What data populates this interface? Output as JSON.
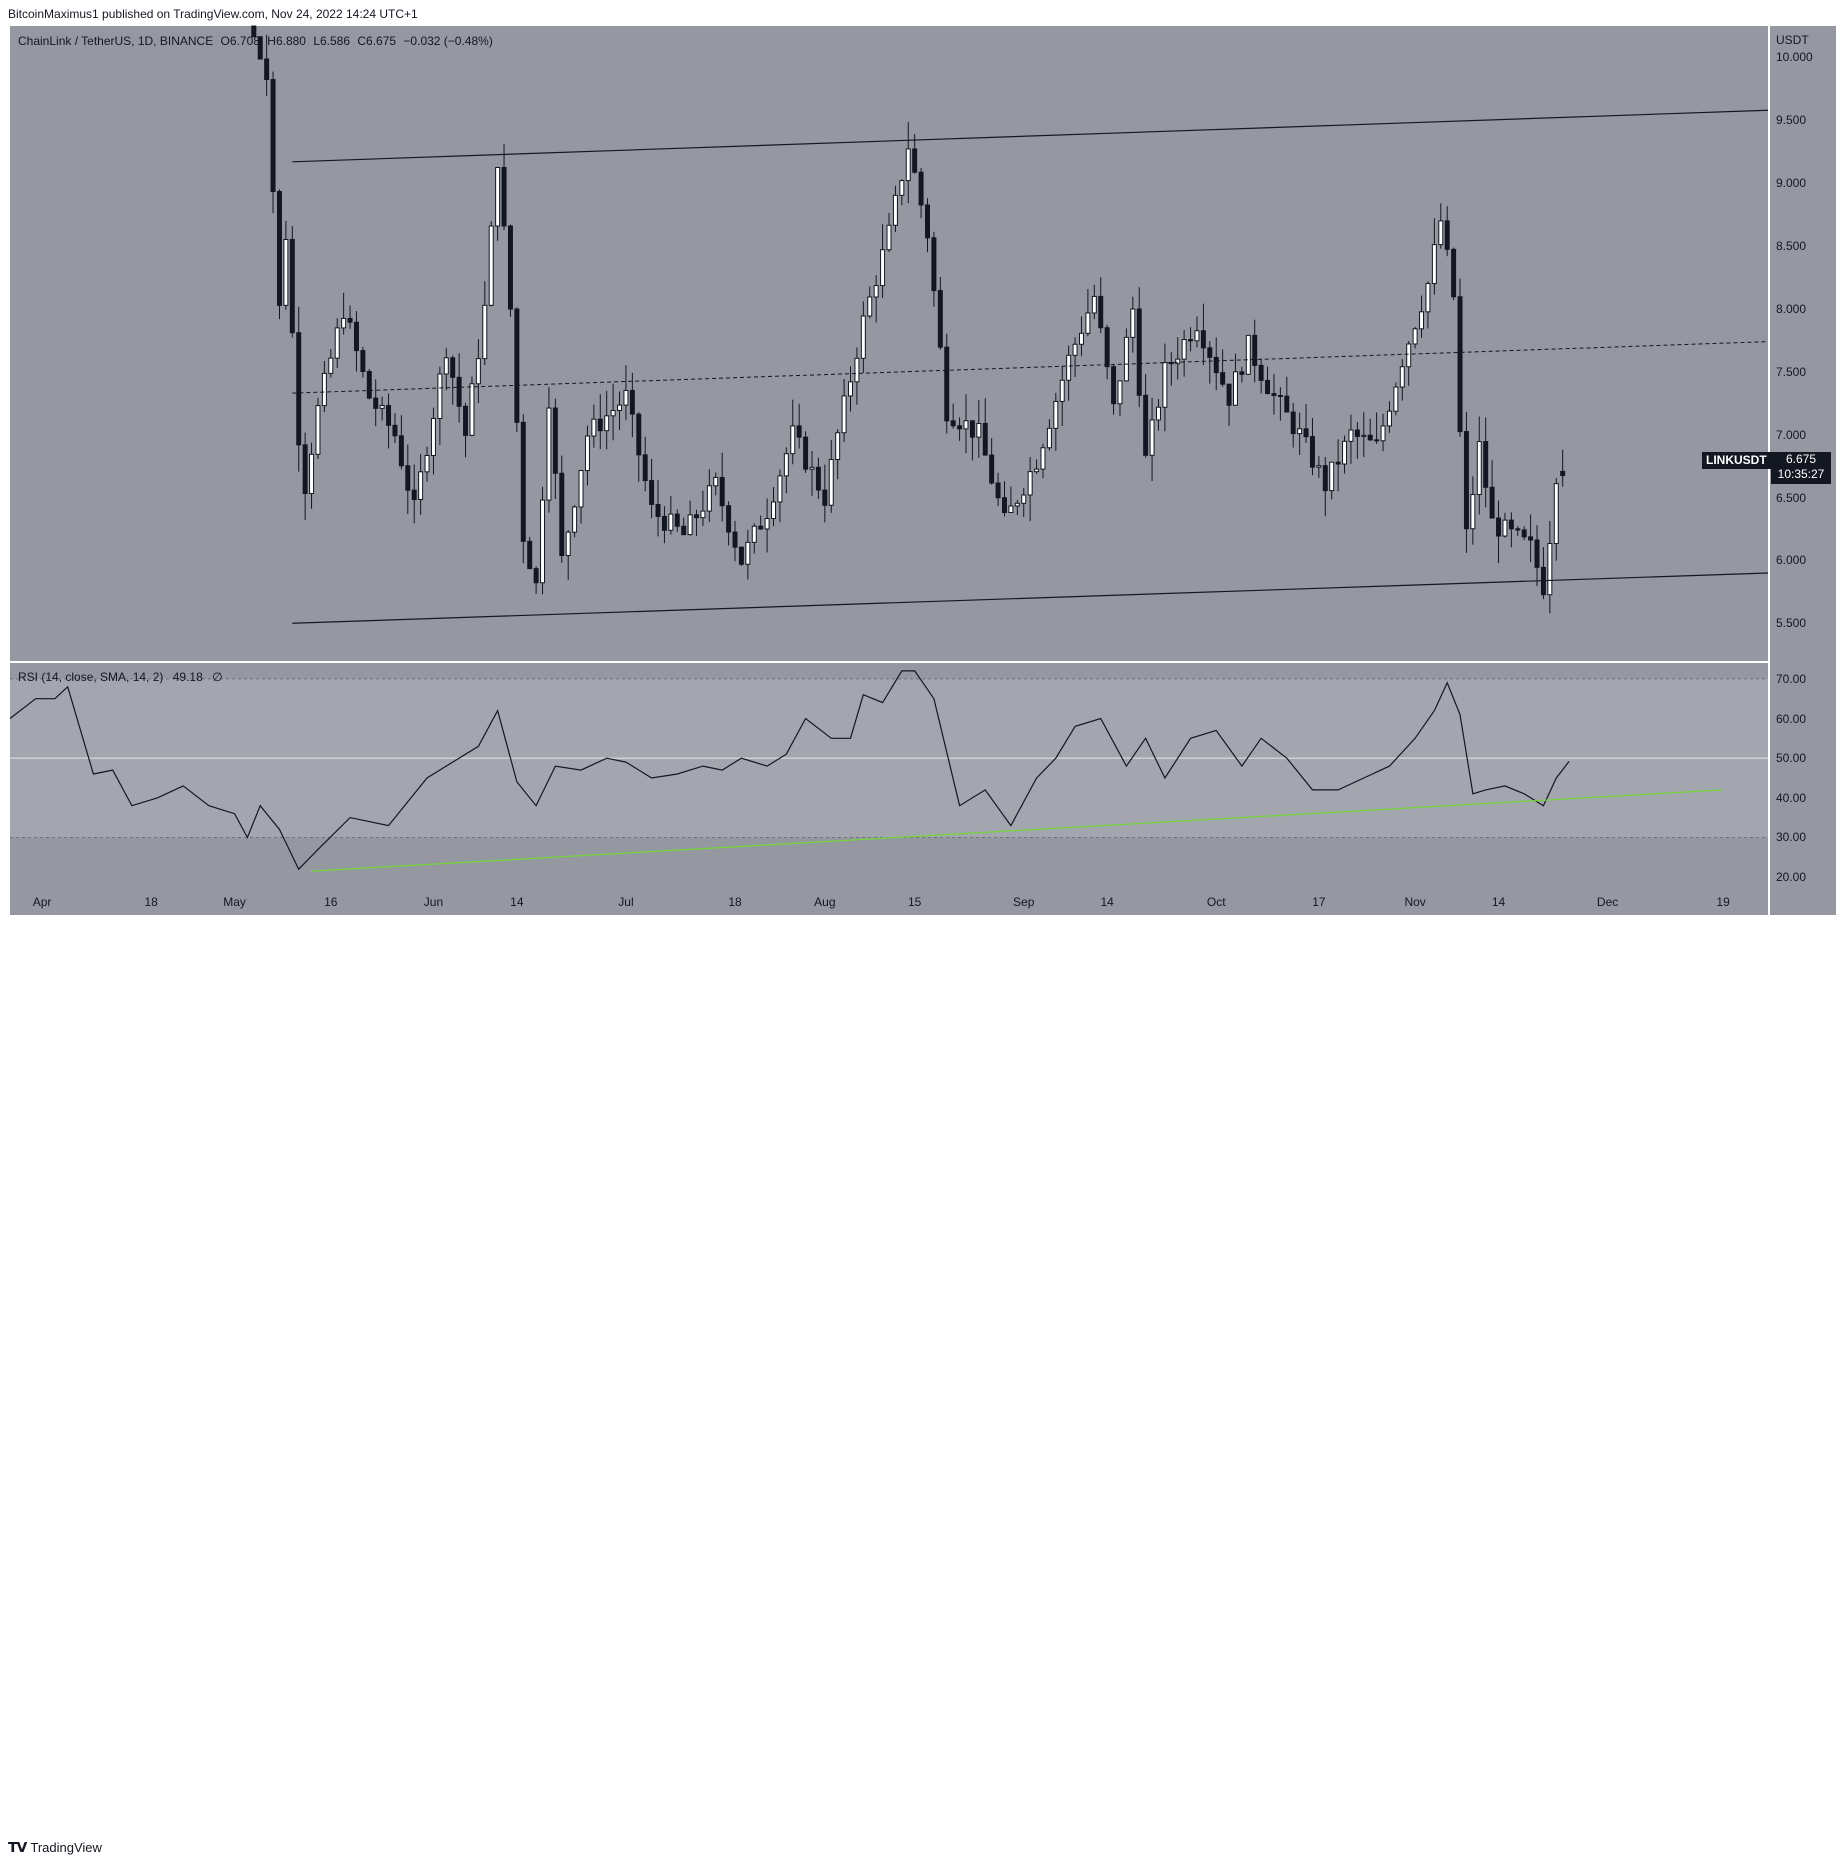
{
  "publisher_line": {
    "author": "BitcoinMaximus1",
    "text": "published on TradingView.com, Nov 24, 2022 14:24 UTC+1"
  },
  "legend": {
    "symbol": "ChainLink / TetherUS, 1D, BINANCE",
    "o_label": "O",
    "o_value": "6.708",
    "h_label": "H",
    "h_value": "6.880",
    "l_label": "L",
    "l_value": "6.586",
    "c_label": "C",
    "c_value": "6.675",
    "change": "−0.032 (−0.48%)"
  },
  "price_axis": {
    "unit": "USDT",
    "ticks": [
      "10.000",
      "9.500",
      "9.000",
      "8.500",
      "8.000",
      "7.500",
      "7.000",
      "6.500",
      "6.000",
      "5.500"
    ]
  },
  "last_price": {
    "symbol": "LINKUSDT",
    "price": "6.675",
    "countdown": "10:35:27"
  },
  "rsi": {
    "legend": "RSI (14, close, SMA, 14, 2)",
    "value": "49.18",
    "extra": "∅",
    "ticks": [
      "70.00",
      "60.00",
      "50.00",
      "40.00",
      "30.00",
      "20.00"
    ]
  },
  "time_axis": {
    "labels": [
      "Apr",
      "18",
      "May",
      "16",
      "Jun",
      "14",
      "Jul",
      "18",
      "Aug",
      "15",
      "Sep",
      "14",
      "Oct",
      "17",
      "Nov",
      "14",
      "Dec",
      "19"
    ]
  },
  "footer": {
    "brand": "TradingView"
  },
  "colors": {
    "pane": "#9598a1",
    "bull": "#ffffff",
    "bear": "#131722",
    "rsi_trend": "#76d43b"
  },
  "chart_data": [
    {
      "type": "candlestick",
      "title": "ChainLink / TetherUS, 1D, BINANCE",
      "ylabel": "USDT",
      "ylim": [
        5.2,
        10.25
      ],
      "x_range": [
        "2022-03-27",
        "2022-12-26"
      ],
      "waypoints_close": [
        [
          "2022-05-03",
          10.3
        ],
        [
          "2022-05-06",
          9.9
        ],
        [
          "2022-05-08",
          8.0
        ],
        [
          "2022-05-09",
          8.6
        ],
        [
          "2022-05-11",
          7.0
        ],
        [
          "2022-05-12",
          6.6
        ],
        [
          "2022-05-14",
          7.2
        ],
        [
          "2022-05-18",
          8.0
        ],
        [
          "2022-05-22",
          7.3
        ],
        [
          "2022-05-26",
          7.0
        ],
        [
          "2022-05-29",
          6.4
        ],
        [
          "2022-06-03",
          7.7
        ],
        [
          "2022-06-06",
          7.0
        ],
        [
          "2022-06-09",
          8.0
        ],
        [
          "2022-06-11",
          9.2
        ],
        [
          "2022-06-13",
          8.0
        ],
        [
          "2022-06-15",
          6.2
        ],
        [
          "2022-06-17",
          5.8
        ],
        [
          "2022-06-19",
          7.3
        ],
        [
          "2022-06-21",
          6.0
        ],
        [
          "2022-06-25",
          7.0
        ],
        [
          "2022-07-01",
          7.3
        ],
        [
          "2022-07-05",
          6.4
        ],
        [
          "2022-07-10",
          6.2
        ],
        [
          "2022-07-15",
          6.6
        ],
        [
          "2022-07-19",
          6.0
        ],
        [
          "2022-07-23",
          6.4
        ],
        [
          "2022-07-27",
          7.0
        ],
        [
          "2022-08-01",
          6.5
        ],
        [
          "2022-08-03",
          7.0
        ],
        [
          "2022-08-07",
          7.9
        ],
        [
          "2022-08-11",
          8.6
        ],
        [
          "2022-08-14",
          9.3
        ],
        [
          "2022-08-17",
          8.6
        ],
        [
          "2022-08-20",
          7.2
        ],
        [
          "2022-08-25",
          7.0
        ],
        [
          "2022-08-29",
          6.3
        ],
        [
          "2022-09-03",
          6.8
        ],
        [
          "2022-09-08",
          7.6
        ],
        [
          "2022-09-12",
          8.1
        ],
        [
          "2022-09-15",
          7.2
        ],
        [
          "2022-09-18",
          8.0
        ],
        [
          "2022-09-20",
          6.8
        ],
        [
          "2022-09-23",
          7.5
        ],
        [
          "2022-09-28",
          7.9
        ],
        [
          "2022-10-03",
          7.3
        ],
        [
          "2022-10-06",
          7.7
        ],
        [
          "2022-10-10",
          7.3
        ],
        [
          "2022-10-14",
          7.0
        ],
        [
          "2022-10-18",
          6.6
        ],
        [
          "2022-10-22",
          7.0
        ],
        [
          "2022-10-26",
          6.9
        ],
        [
          "2022-10-30",
          7.6
        ],
        [
          "2022-11-03",
          8.2
        ],
        [
          "2022-11-05",
          8.7
        ],
        [
          "2022-11-07",
          8.1
        ],
        [
          "2022-11-08",
          7.0
        ],
        [
          "2022-11-09",
          6.2
        ],
        [
          "2022-11-11",
          6.9
        ],
        [
          "2022-11-13",
          6.3
        ],
        [
          "2022-11-16",
          6.2
        ],
        [
          "2022-11-19",
          6.1
        ],
        [
          "2022-11-21",
          5.8
        ],
        [
          "2022-11-22",
          6.2
        ],
        [
          "2022-11-23",
          6.7
        ],
        [
          "2022-11-24",
          6.675
        ]
      ],
      "last_candle": {
        "date": "2022-11-24",
        "open": 6.708,
        "high": 6.88,
        "low": 6.586,
        "close": 6.675
      },
      "channel": {
        "lower": [
          [
            "2022-05-10",
            5.5
          ],
          [
            "2022-12-26",
            5.9
          ]
        ],
        "upper": [
          [
            "2022-05-10",
            9.17
          ],
          [
            "2022-12-26",
            9.58
          ]
        ],
        "mid_dashed": [
          [
            "2022-05-10",
            7.33
          ],
          [
            "2022-12-26",
            7.74
          ]
        ]
      }
    },
    {
      "type": "line",
      "title": "RSI (14, close, SMA, 14, 2)",
      "ylim": [
        17,
        74
      ],
      "bands": {
        "upper": 70,
        "middle": 50,
        "lower": 30
      },
      "series": [
        {
          "values": [
            [
              "2022-03-27",
              60
            ],
            [
              "2022-03-31",
              65
            ],
            [
              "2022-04-03",
              65
            ],
            [
              "2022-04-05",
              68
            ],
            [
              "2022-04-09",
              46
            ],
            [
              "2022-04-12",
              47
            ],
            [
              "2022-04-15",
              38
            ],
            [
              "2022-04-19",
              40
            ],
            [
              "2022-04-23",
              43
            ],
            [
              "2022-04-27",
              38
            ],
            [
              "2022-05-01",
              36
            ],
            [
              "2022-05-03",
              30
            ],
            [
              "2022-05-05",
              38
            ],
            [
              "2022-05-08",
              32
            ],
            [
              "2022-05-11",
              22
            ],
            [
              "2022-05-14",
              27
            ],
            [
              "2022-05-19",
              35
            ],
            [
              "2022-05-25",
              33
            ],
            [
              "2022-05-31",
              45
            ],
            [
              "2022-06-04",
              49
            ],
            [
              "2022-06-08",
              53
            ],
            [
              "2022-06-11",
              62
            ],
            [
              "2022-06-14",
              44
            ],
            [
              "2022-06-17",
              38
            ],
            [
              "2022-06-20",
              48
            ],
            [
              "2022-06-24",
              47
            ],
            [
              "2022-06-28",
              50
            ],
            [
              "2022-07-01",
              49
            ],
            [
              "2022-07-05",
              45
            ],
            [
              "2022-07-09",
              46
            ],
            [
              "2022-07-13",
              48
            ],
            [
              "2022-07-16",
              47
            ],
            [
              "2022-07-19",
              50
            ],
            [
              "2022-07-23",
              48
            ],
            [
              "2022-07-26",
              51
            ],
            [
              "2022-07-29",
              60
            ],
            [
              "2022-08-02",
              55
            ],
            [
              "2022-08-05",
              55
            ],
            [
              "2022-08-07",
              66
            ],
            [
              "2022-08-10",
              64
            ],
            [
              "2022-08-13",
              72
            ],
            [
              "2022-08-15",
              72
            ],
            [
              "2022-08-18",
              65
            ],
            [
              "2022-08-22",
              38
            ],
            [
              "2022-08-26",
              42
            ],
            [
              "2022-08-30",
              33
            ],
            [
              "2022-09-03",
              45
            ],
            [
              "2022-09-06",
              50
            ],
            [
              "2022-09-09",
              58
            ],
            [
              "2022-09-13",
              60
            ],
            [
              "2022-09-17",
              48
            ],
            [
              "2022-09-20",
              55
            ],
            [
              "2022-09-23",
              45
            ],
            [
              "2022-09-27",
              55
            ],
            [
              "2022-10-01",
              57
            ],
            [
              "2022-10-05",
              48
            ],
            [
              "2022-10-08",
              55
            ],
            [
              "2022-10-12",
              50
            ],
            [
              "2022-10-16",
              42
            ],
            [
              "2022-10-20",
              42
            ],
            [
              "2022-10-24",
              45
            ],
            [
              "2022-10-28",
              48
            ],
            [
              "2022-11-01",
              55
            ],
            [
              "2022-11-04",
              62
            ],
            [
              "2022-11-06",
              69
            ],
            [
              "2022-11-08",
              61
            ],
            [
              "2022-11-10",
              41
            ],
            [
              "2022-11-12",
              42
            ],
            [
              "2022-11-15",
              43
            ],
            [
              "2022-11-18",
              41
            ],
            [
              "2022-11-21",
              38
            ],
            [
              "2022-11-23",
              45
            ],
            [
              "2022-11-25",
              49.18
            ]
          ]
        }
      ],
      "trendline": [
        [
          "2022-05-13",
          21.5
        ],
        [
          "2022-12-19",
          42
        ]
      ]
    }
  ]
}
